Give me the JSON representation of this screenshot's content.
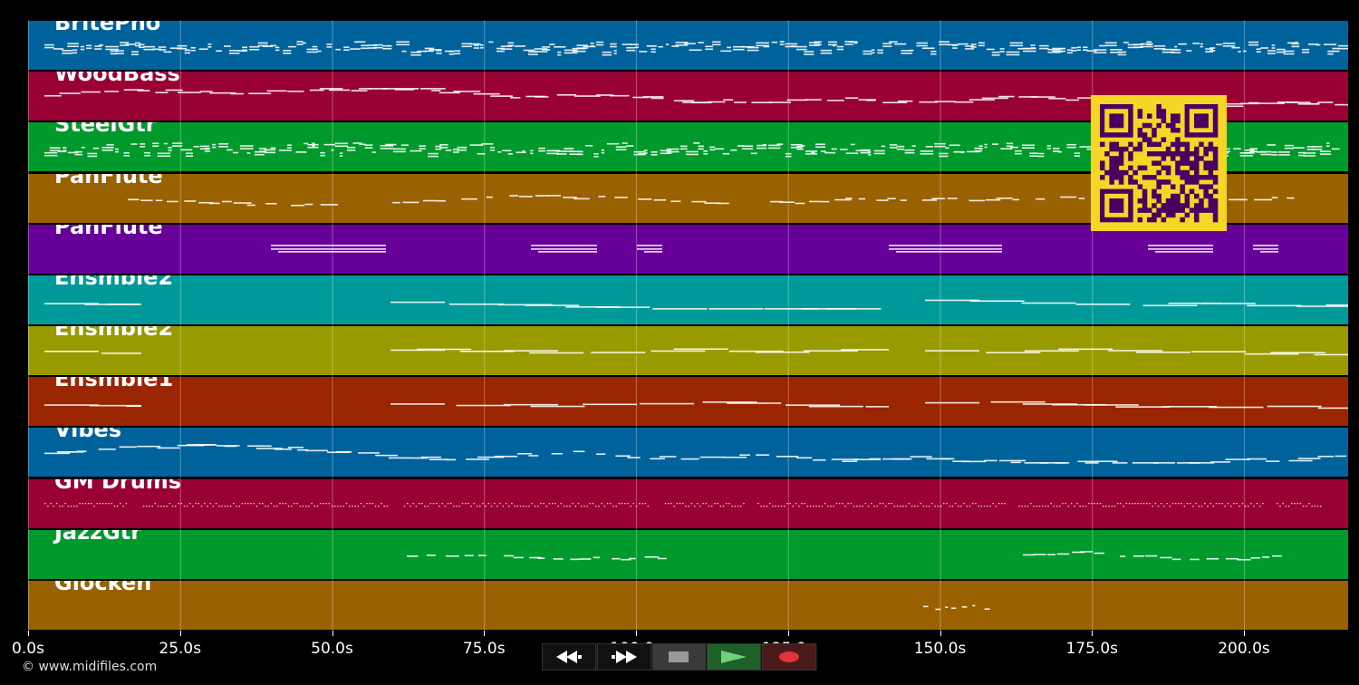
{
  "tracks": [
    {
      "name": "BritePno",
      "color": "#00629b",
      "style": "chords"
    },
    {
      "name": "WoodBass",
      "color": "#990033",
      "style": "bass"
    },
    {
      "name": "SteelGtr",
      "color": "#00992b",
      "style": "chords"
    },
    {
      "name": "PanFlute",
      "color": "#996100",
      "style": "melody"
    },
    {
      "name": "PanFlute",
      "color": "#660099",
      "style": "sparse"
    },
    {
      "name": "Ensmble2",
      "color": "#009999",
      "style": "pad"
    },
    {
      "name": "Ensmble2",
      "color": "#999900",
      "style": "pad"
    },
    {
      "name": "Ensmble1",
      "color": "#992600",
      "style": "pad"
    },
    {
      "name": "Vibes",
      "color": "#00629b",
      "style": "bass"
    },
    {
      "name": "GM Drums",
      "color": "#990033",
      "style": "drums"
    },
    {
      "name": "JazzGtr",
      "color": "#00992b",
      "style": "sparse-melody"
    },
    {
      "name": "Glocken",
      "color": "#996100",
      "style": "tiny"
    }
  ],
  "timeline": {
    "duration_s": 217,
    "ticks": [
      "0.0s",
      "25.0s",
      "50.0s",
      "75.0s",
      "100.0s",
      "125.0s",
      "150.0s",
      "175.0s",
      "200.0s"
    ],
    "tick_values": [
      0,
      25,
      50,
      75,
      100,
      125,
      150,
      175,
      200
    ]
  },
  "copyright": "© www.midifiles.com",
  "controls": {
    "rewind_icon": "rewind-icon",
    "forward_icon": "fast-forward-icon",
    "stop_icon": "stop-icon",
    "play_icon": "play-icon",
    "record_icon": "record-icon"
  },
  "colors": {
    "qr_background": "#f5d525",
    "qr_modules": "#4a0060",
    "gridline": "rgba(255,255,255,0.28)"
  }
}
